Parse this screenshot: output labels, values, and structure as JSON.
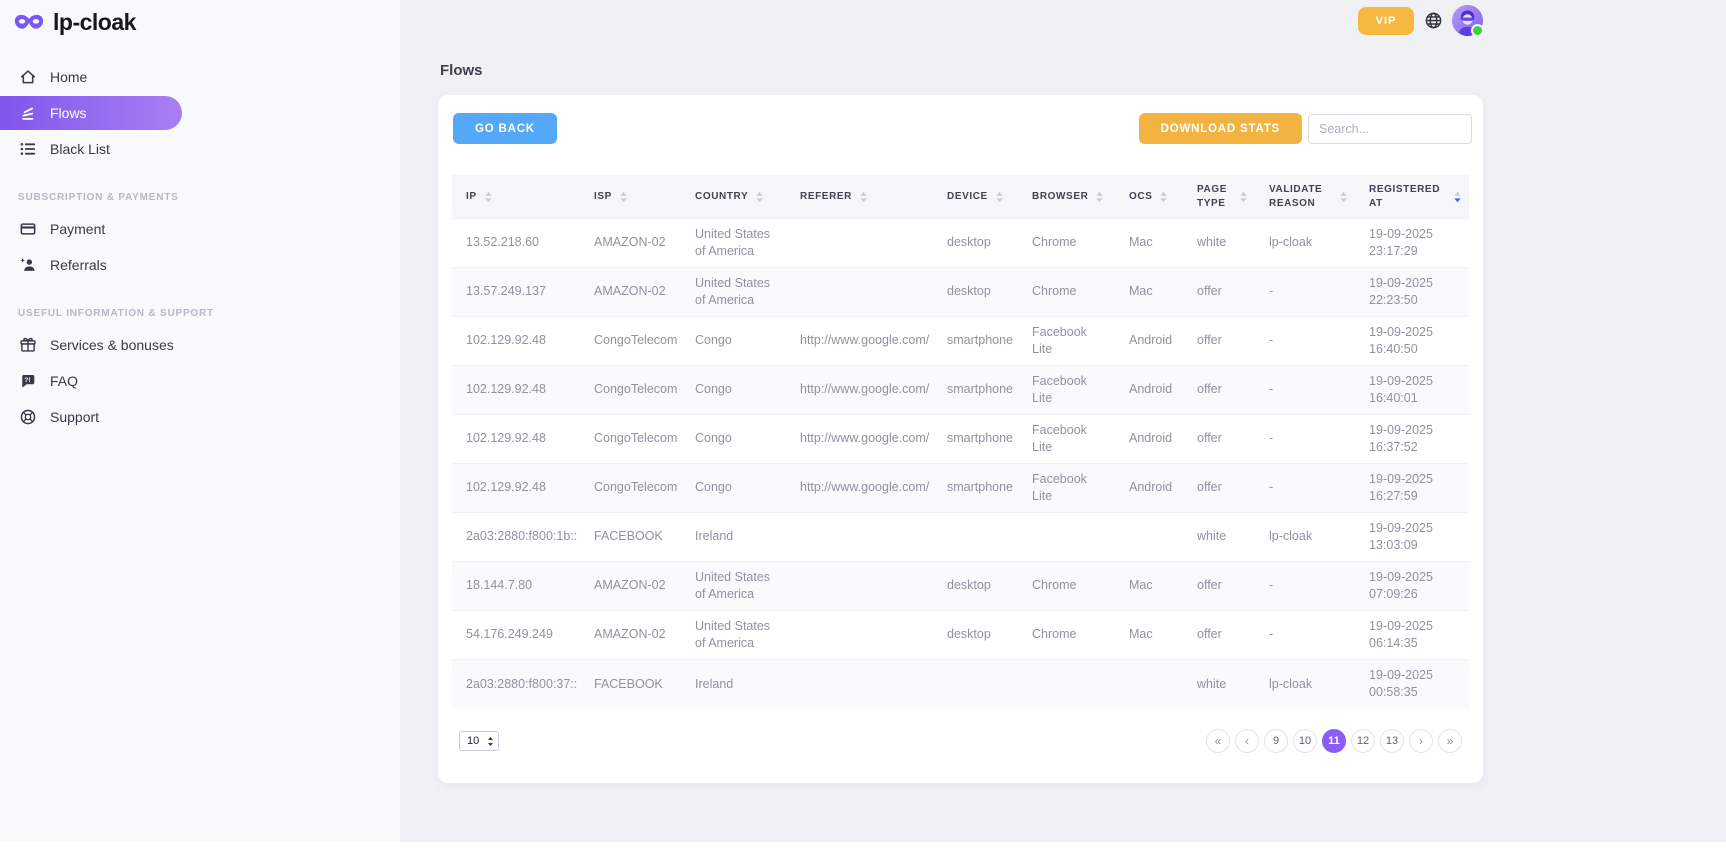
{
  "brand": {
    "name": "lp-cloak"
  },
  "topbar": {
    "vip_label": "VIP",
    "icons": [
      "globe-icon",
      "avatar"
    ]
  },
  "sidebar": {
    "groups": [
      {
        "label": "",
        "items": [
          {
            "slug": "home",
            "icon": "home-icon",
            "label": "Home",
            "active": false
          },
          {
            "slug": "flows",
            "icon": "flows-icon",
            "label": "Flows",
            "active": true
          },
          {
            "slug": "black-list",
            "icon": "black-list-icon",
            "label": "Black List",
            "active": false
          }
        ]
      },
      {
        "label": "SUBSCRIPTION & PAYMENTS",
        "items": [
          {
            "slug": "payment",
            "icon": "payment-icon",
            "label": "Payment",
            "active": false
          },
          {
            "slug": "referrals",
            "icon": "referrals-icon",
            "label": "Referrals",
            "active": false
          }
        ]
      },
      {
        "label": "USEFUL INFORMATION & SUPPORT",
        "items": [
          {
            "slug": "services-bonuses",
            "icon": "gift-icon",
            "label": "Services & bonuses",
            "active": false
          },
          {
            "slug": "faq",
            "icon": "faq-icon",
            "label": "FAQ",
            "active": false
          },
          {
            "slug": "support",
            "icon": "support-icon",
            "label": "Support",
            "active": false
          }
        ]
      }
    ]
  },
  "main": {
    "title": "Flows",
    "toolbar": {
      "go_back_label": "GO BACK",
      "download_stats_label": "DOWNLOAD STATS",
      "search_placeholder": "Search...",
      "search_value": ""
    },
    "table": {
      "columns": [
        {
          "key": "ip",
          "label": "IP",
          "sortable": true
        },
        {
          "key": "isp",
          "label": "ISP",
          "sortable": true
        },
        {
          "key": "country",
          "label": "COUNTRY",
          "sortable": true
        },
        {
          "key": "referer",
          "label": "REFERER",
          "sortable": true
        },
        {
          "key": "device",
          "label": "DEVICE",
          "sortable": true
        },
        {
          "key": "browser",
          "label": "BROWSER",
          "sortable": true
        },
        {
          "key": "ocs",
          "label": "OCS",
          "sortable": true
        },
        {
          "key": "page_type",
          "label": "PAGE TYPE",
          "sortable": true
        },
        {
          "key": "validate_reason",
          "label": "VALIDATE REASON",
          "sortable": true
        },
        {
          "key": "registered_at",
          "label": "REGISTERED AT",
          "sortable": true,
          "sort": "desc"
        }
      ],
      "rows": [
        {
          "ip": "13.52.218.60",
          "isp": "AMAZON-02",
          "country": "United States of America",
          "referer": "",
          "device": "desktop",
          "browser": "Chrome",
          "ocs": "Mac",
          "page_type": "white",
          "validate_reason": "lp-cloak",
          "registered_at": "19-09-2025 23:17:29"
        },
        {
          "ip": "13.57.249.137",
          "isp": "AMAZON-02",
          "country": "United States of America",
          "referer": "",
          "device": "desktop",
          "browser": "Chrome",
          "ocs": "Mac",
          "page_type": "offer",
          "validate_reason": "-",
          "registered_at": "19-09-2025 22:23:50"
        },
        {
          "ip": "102.129.92.48",
          "isp": "CongoTelecom",
          "country": "Congo",
          "referer": "http://www.google.com/",
          "device": "smartphone",
          "browser": "Facebook Lite",
          "ocs": "Android",
          "page_type": "offer",
          "validate_reason": "-",
          "registered_at": "19-09-2025 16:40:50"
        },
        {
          "ip": "102.129.92.48",
          "isp": "CongoTelecom",
          "country": "Congo",
          "referer": "http://www.google.com/",
          "device": "smartphone",
          "browser": "Facebook Lite",
          "ocs": "Android",
          "page_type": "offer",
          "validate_reason": "-",
          "registered_at": "19-09-2025 16:40:01"
        },
        {
          "ip": "102.129.92.48",
          "isp": "CongoTelecom",
          "country": "Congo",
          "referer": "http://www.google.com/",
          "device": "smartphone",
          "browser": "Facebook Lite",
          "ocs": "Android",
          "page_type": "offer",
          "validate_reason": "-",
          "registered_at": "19-09-2025 16:37:52"
        },
        {
          "ip": "102.129.92.48",
          "isp": "CongoTelecom",
          "country": "Congo",
          "referer": "http://www.google.com/",
          "device": "smartphone",
          "browser": "Facebook Lite",
          "ocs": "Android",
          "page_type": "offer",
          "validate_reason": "-",
          "registered_at": "19-09-2025 16:27:59"
        },
        {
          "ip": "2a03:2880:f800:1b::",
          "isp": "FACEBOOK",
          "country": "Ireland",
          "referer": "",
          "device": "",
          "browser": "",
          "ocs": "",
          "page_type": "white",
          "validate_reason": "lp-cloak",
          "registered_at": "19-09-2025 13:03:09"
        },
        {
          "ip": "18.144.7.80",
          "isp": "AMAZON-02",
          "country": "United States of America",
          "referer": "",
          "device": "desktop",
          "browser": "Chrome",
          "ocs": "Mac",
          "page_type": "offer",
          "validate_reason": "-",
          "registered_at": "19-09-2025 07:09:26"
        },
        {
          "ip": "54.176.249.249",
          "isp": "AMAZON-02",
          "country": "United States of America",
          "referer": "",
          "device": "desktop",
          "browser": "Chrome",
          "ocs": "Mac",
          "page_type": "offer",
          "validate_reason": "-",
          "registered_at": "19-09-2025 06:14:35"
        },
        {
          "ip": "2a03:2880:f800:37::",
          "isp": "FACEBOOK",
          "country": "Ireland",
          "referer": "",
          "device": "",
          "browser": "",
          "ocs": "",
          "page_type": "white",
          "validate_reason": "lp-cloak",
          "registered_at": "19-09-2025 00:58:35"
        }
      ]
    },
    "pagination": {
      "page_size": "10",
      "items": [
        {
          "label": "«",
          "name": "first",
          "active": false
        },
        {
          "label": "‹",
          "name": "prev",
          "active": false
        },
        {
          "label": "9",
          "name": "page-9",
          "active": false
        },
        {
          "label": "10",
          "name": "page-10",
          "active": false
        },
        {
          "label": "11",
          "name": "page-11",
          "active": true
        },
        {
          "label": "12",
          "name": "page-12",
          "active": false
        },
        {
          "label": "13",
          "name": "page-13",
          "active": false
        },
        {
          "label": "›",
          "name": "next",
          "active": false
        },
        {
          "label": "»",
          "name": "last",
          "active": false
        }
      ]
    }
  },
  "colors": {
    "accent_purple": "#8b5cf6",
    "sidebar_active_gradient": [
      "#7e57ec",
      "#a87ff2"
    ],
    "go_back_blue": "#55a8f7",
    "download_amber": "#f2b340",
    "vip_amber": "#f5b841",
    "status_green": "#3ecf4a",
    "sort_active_blue": "#3f5ef7"
  }
}
